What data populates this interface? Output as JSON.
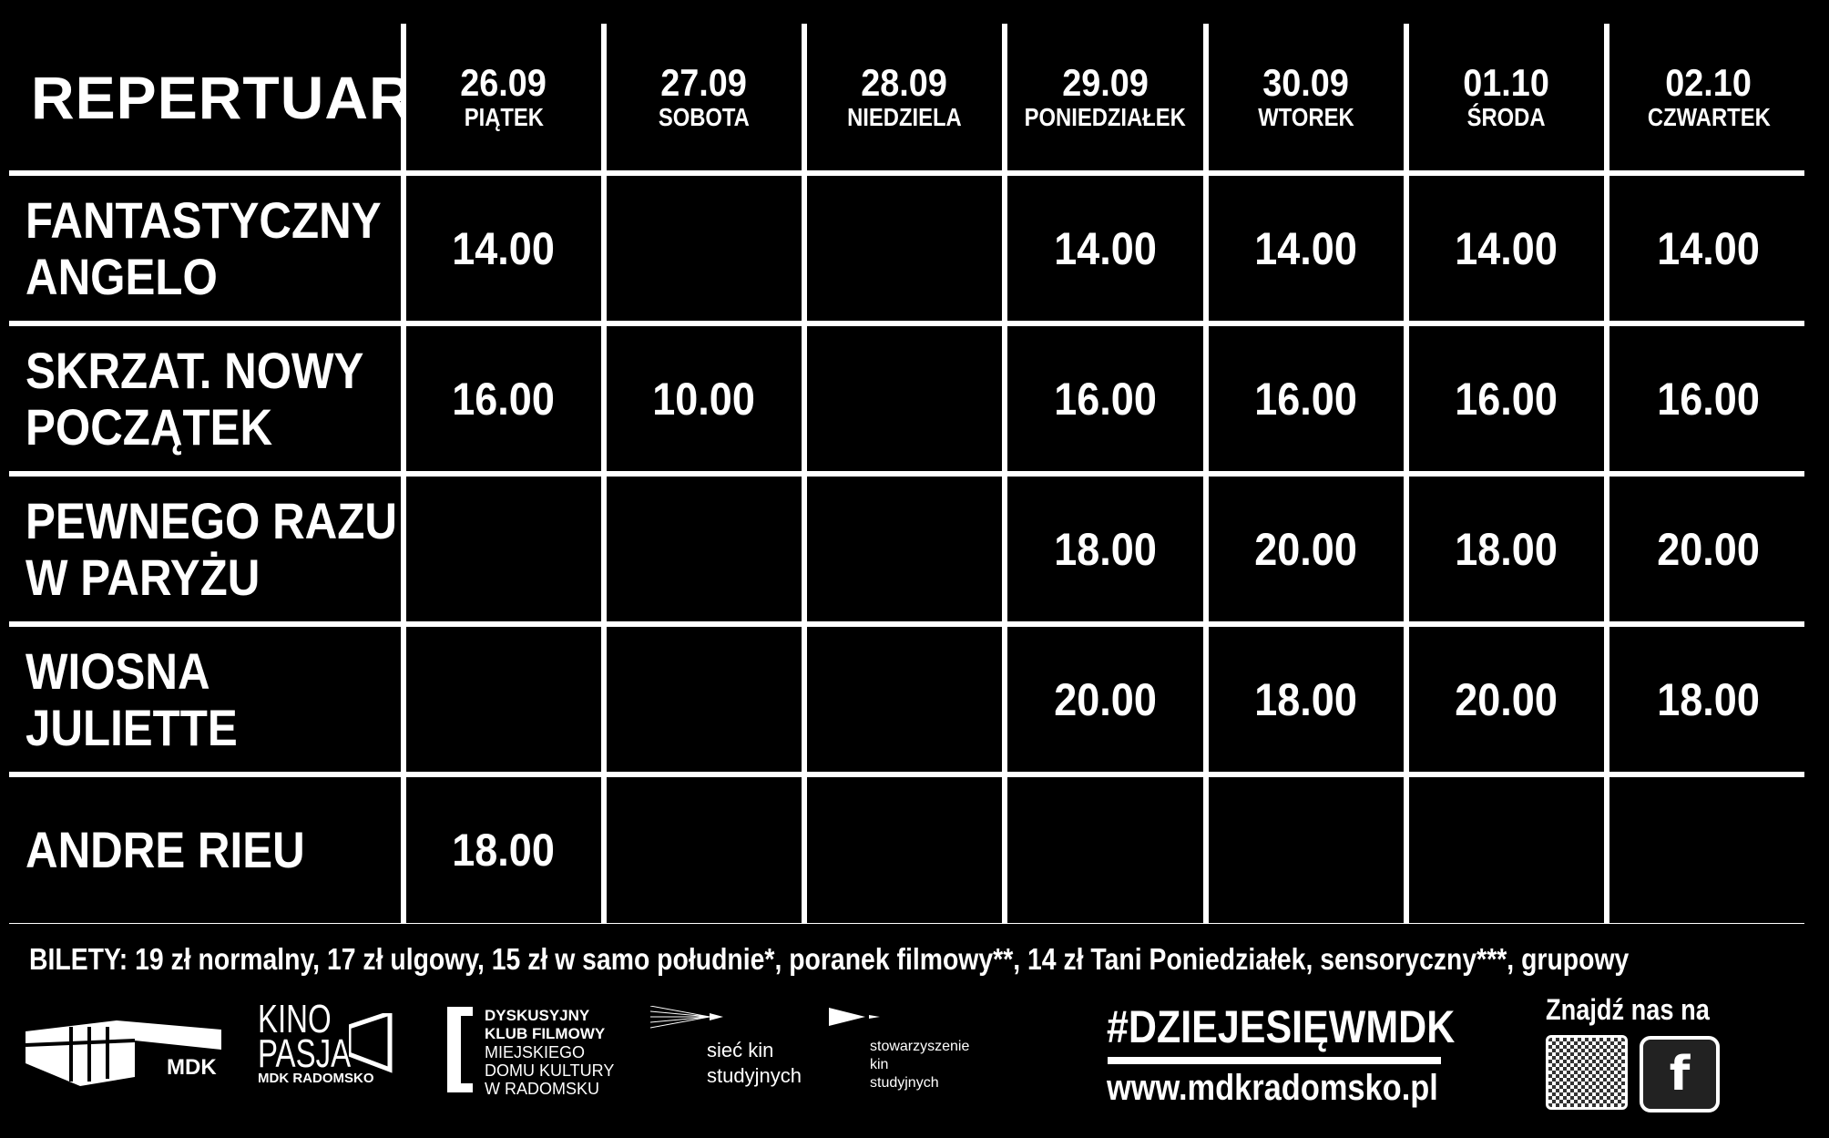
{
  "header": {
    "title": "REPERTUAR"
  },
  "days": [
    {
      "date": "26.09",
      "day": "PIĄTEK"
    },
    {
      "date": "27.09",
      "day": "SOBOTA"
    },
    {
      "date": "28.09",
      "day": "NIEDZIELA"
    },
    {
      "date": "29.09",
      "day": "PONIEDZIAŁEK"
    },
    {
      "date": "30.09",
      "day": "WTOREK"
    },
    {
      "date": "01.10",
      "day": "ŚRODA"
    },
    {
      "date": "02.10",
      "day": "CZWARTEK"
    }
  ],
  "films": [
    {
      "line1": "FANTASTYCZNY",
      "line2": "ANGELO",
      "times": [
        "14.00",
        "",
        "",
        "14.00",
        "14.00",
        "14.00",
        "14.00"
      ]
    },
    {
      "line1": "SKRZAT. NOWY",
      "line2": "POCZĄTEK",
      "times": [
        "16.00",
        "10.00",
        "",
        "16.00",
        "16.00",
        "16.00",
        "16.00"
      ]
    },
    {
      "line1": "PEWNEGO RAZU",
      "line2": "W PARYŻU",
      "times": [
        "",
        "",
        "",
        "18.00",
        "20.00",
        "18.00",
        "20.00"
      ]
    },
    {
      "line1": "WIOSNA",
      "line2": "JULIETTE",
      "times": [
        "",
        "",
        "",
        "20.00",
        "18.00",
        "20.00",
        "18.00"
      ]
    },
    {
      "line1": "ANDRE RIEU",
      "line2": "",
      "times": [
        "18.00",
        "",
        "",
        "",
        "",
        "",
        ""
      ]
    }
  ],
  "tickets": "BILETY: 19 zł normalny, 17 zł ulgowy, 15 zł w samo południe*, poranek filmowy**, 14 zł Tani Poniedziałek, sensoryczny***, grupowy",
  "logos": {
    "mdk": "MDK",
    "kino_pasja": [
      "KINO",
      "PASJA",
      "MDK RADOMSKO"
    ],
    "dkf": [
      "DYSKUSYJNY",
      "KLUB FILMOWY",
      "MIEJSKIEGO",
      "DOMU KULTURY",
      "W RADOMSKU"
    ],
    "siec": [
      "sieć kin",
      "studyjnych"
    ],
    "stowarzyszenie": [
      "stowarzyszenie",
      "kin",
      "studyjnych"
    ]
  },
  "footer": {
    "hashtag": "#DZIEJESIĘWMDK",
    "url": "www.mdkradomsko.pl",
    "find_us": "Znajdź nas na",
    "facebook_icon": "f"
  }
}
